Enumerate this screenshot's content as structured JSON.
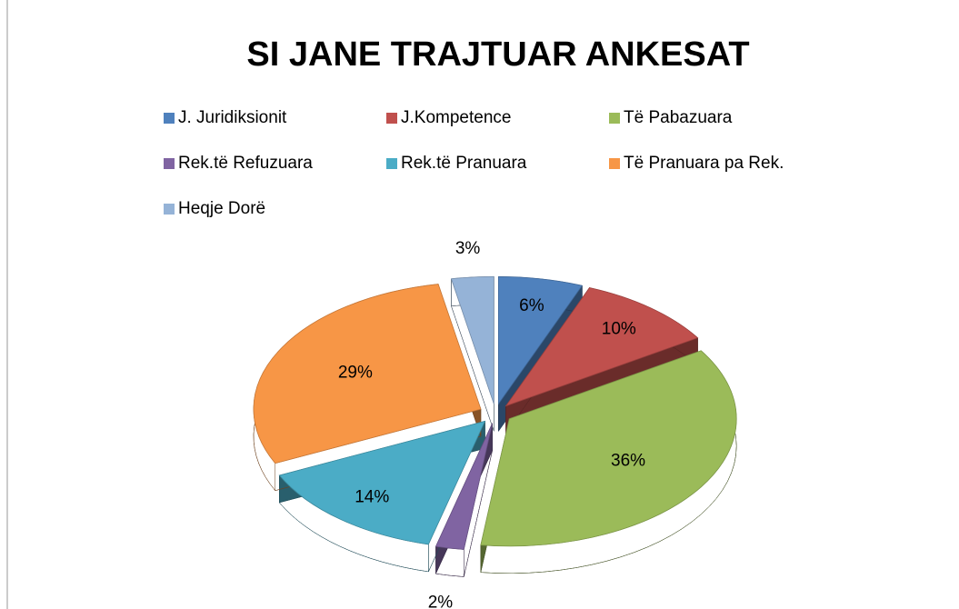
{
  "chart_data": {
    "type": "pie",
    "title": "SI JANE TRAJTUAR ANKESAT",
    "categories": [
      "J. Juridiksionit",
      "J.Kompetence",
      "Të Pabazuara",
      "Rek.të Refuzuara",
      "Rek.të Pranuara",
      "Të Pranuara pa Rek.",
      "Heqje Dorë"
    ],
    "values": [
      6,
      10,
      36,
      2,
      14,
      29,
      3
    ],
    "value_labels": [
      "6%",
      "10%",
      "36%",
      "2%",
      "14%",
      "29%",
      "3%"
    ],
    "colors": [
      "#4f81bd",
      "#c0504d",
      "#9bbb59",
      "#8064a2",
      "#4bacc6",
      "#f79646",
      "#95b3d7"
    ]
  }
}
